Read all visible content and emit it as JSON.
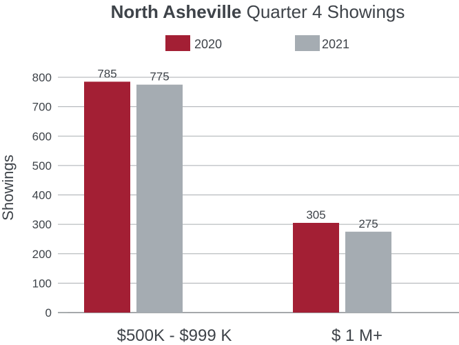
{
  "chart_data": {
    "type": "bar",
    "title_bold": "North Asheville",
    "title_rest": "Quarter 4 Showings",
    "ylabel": "Showings",
    "xlabel": "",
    "categories": [
      "$500K - $999 K",
      "$ 1 M+"
    ],
    "series": [
      {
        "name": "2020",
        "color": "#a31f34",
        "values": [
          785,
          305
        ]
      },
      {
        "name": "2021",
        "color": "#a5acb2",
        "values": [
          775,
          275
        ]
      }
    ],
    "ylim": [
      0,
      800
    ],
    "yticks": [
      0,
      100,
      200,
      300,
      400,
      500,
      600,
      700,
      800
    ],
    "grid": true,
    "legend_position": "top-center"
  }
}
